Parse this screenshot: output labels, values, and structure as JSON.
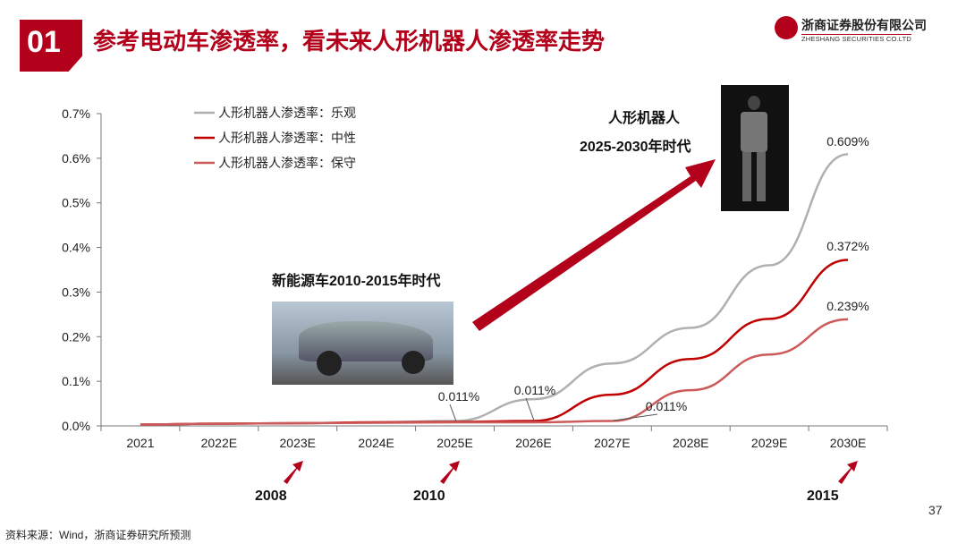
{
  "header": {
    "number": "01",
    "title": "参考电动车渗透率，看未来人形机器人渗透率走势",
    "logo_cn": "浙商证券股份有限公司",
    "logo_en": "ZHESHANG SECURITIES CO.LTD"
  },
  "annotations": {
    "ev_era": "新能源车2010-2015年时代",
    "robot_era_1": "人形机器人",
    "robot_era_2": "2025-2030年时代",
    "year_2008": "2008",
    "year_2010": "2010",
    "year_2015": "2015"
  },
  "footer": {
    "source": "资料来源：Wind，浙商证券研究所预测",
    "page": "37"
  },
  "colors": {
    "accent": "#b3001b",
    "optimistic": "#b0b0b0",
    "neutral": "#c00000",
    "conservative": "#cc5a5a"
  },
  "chart_data": {
    "type": "line",
    "categories": [
      "2021",
      "2022E",
      "2023E",
      "2024E",
      "2025E",
      "2026E",
      "2027E",
      "2028E",
      "2029E",
      "2030E"
    ],
    "ylim": [
      0,
      0.7
    ],
    "yticks": [
      "0.0%",
      "0.1%",
      "0.2%",
      "0.3%",
      "0.4%",
      "0.5%",
      "0.6%",
      "0.7%"
    ],
    "yunit": "%",
    "legend_position": "top-left",
    "series": [
      {
        "name": "人形机器人渗透率：乐观",
        "values": [
          0.003,
          0.005,
          0.006,
          0.008,
          0.011,
          0.06,
          0.14,
          0.22,
          0.36,
          0.609
        ]
      },
      {
        "name": "人形机器人渗透率：中性",
        "values": [
          0.003,
          0.005,
          0.006,
          0.008,
          0.009,
          0.011,
          0.07,
          0.15,
          0.24,
          0.372
        ]
      },
      {
        "name": "人形机器人渗透率：保守",
        "values": [
          0.003,
          0.005,
          0.006,
          0.007,
          0.008,
          0.008,
          0.011,
          0.08,
          0.16,
          0.239
        ]
      }
    ],
    "data_labels": [
      "0.609%",
      "0.372%",
      "0.239%",
      "0.011%",
      "0.011%",
      "0.011%"
    ]
  }
}
